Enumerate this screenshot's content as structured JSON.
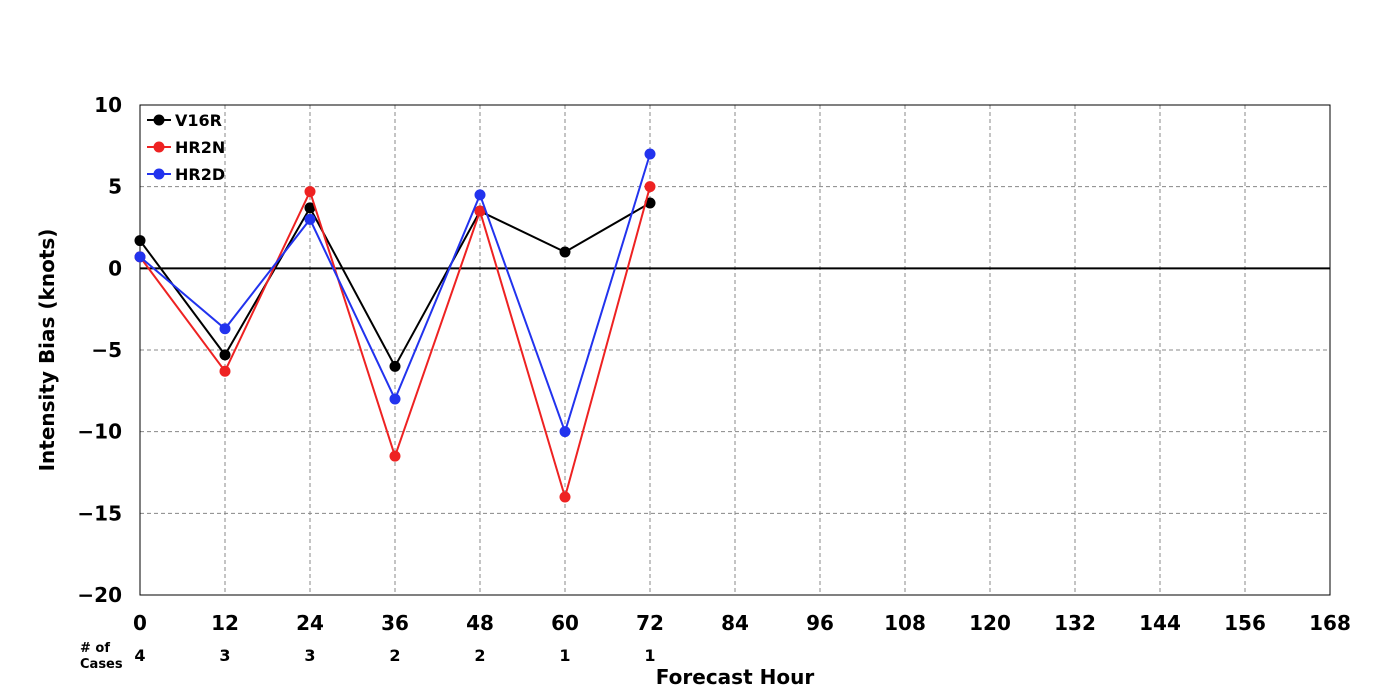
{
  "chart_data": {
    "type": "line",
    "xlabel": "Forecast Hour",
    "ylabel": "Intensity Bias (knots)",
    "xlim": [
      0,
      168
    ],
    "ylim": [
      -20,
      10
    ],
    "xticks": [
      "0",
      "12",
      "24",
      "36",
      "48",
      "60",
      "72",
      "84",
      "96",
      "108",
      "120",
      "132",
      "144",
      "156",
      "168"
    ],
    "yticks": [
      "10",
      "5",
      "0",
      "−5",
      "−10",
      "−15",
      "−20"
    ],
    "grid": true,
    "legend_position": "top-left",
    "x": [
      0,
      12,
      24,
      36,
      48,
      60,
      72
    ],
    "series": [
      {
        "name": "V16R",
        "color": "#000000",
        "values": [
          1.7,
          -5.3,
          3.7,
          -6.0,
          3.5,
          1.0,
          4.0
        ]
      },
      {
        "name": "HR2N",
        "color": "#ee2222",
        "values": [
          0.7,
          -6.3,
          4.7,
          -11.5,
          3.5,
          -14.0,
          5.0
        ]
      },
      {
        "name": "HR2D",
        "color": "#2233ee",
        "values": [
          0.7,
          -3.7,
          3.0,
          -8.0,
          4.5,
          -10.0,
          7.0
        ]
      }
    ],
    "cases_label_line1": "# of",
    "cases_label_line2": "Cases",
    "cases": [
      "4",
      "3",
      "3",
      "2",
      "2",
      "1",
      "1"
    ]
  }
}
